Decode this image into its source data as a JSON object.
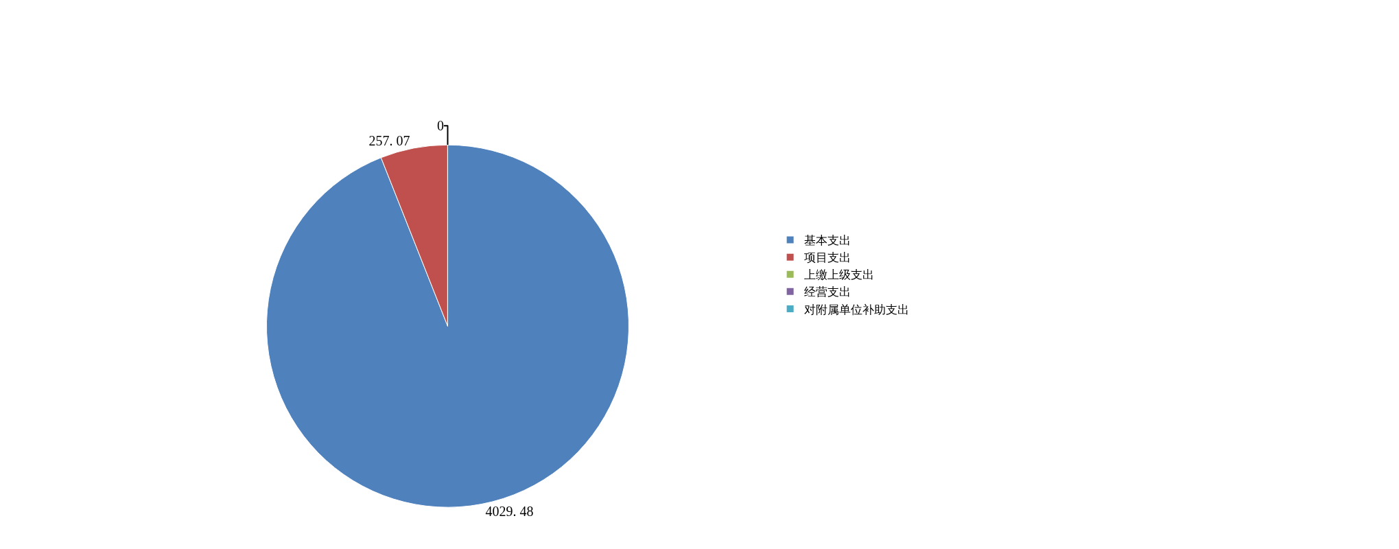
{
  "chart_data": {
    "type": "pie",
    "categories": [
      "基本支出",
      "项目支出",
      "上缴上级支出",
      "经营支出",
      "对附属单位补助支出"
    ],
    "values": [
      4029.48,
      257.07,
      0,
      0,
      0
    ],
    "colors": [
      "#4f81bd",
      "#c0504d",
      "#9bbb59",
      "#8064a2",
      "#4bacc6"
    ],
    "value_labels": [
      "4029. 48",
      "257. 07",
      "0",
      null,
      null
    ],
    "legend": "right"
  }
}
